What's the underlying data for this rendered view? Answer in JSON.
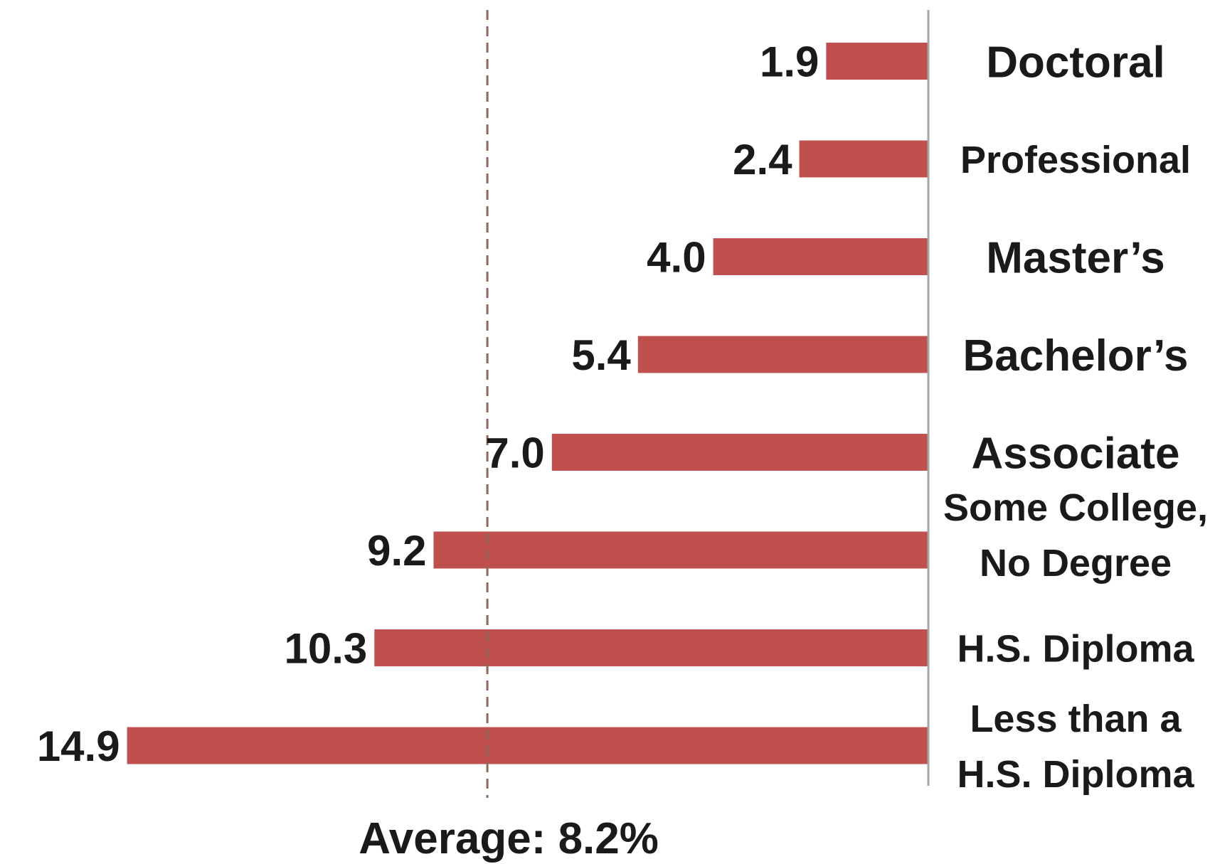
{
  "chart_data": {
    "type": "bar",
    "orientation": "horizontal",
    "categories": [
      "Doctoral",
      "Professional",
      "Master’s",
      "Bachelor’s",
      "Associate",
      "Some College, No Degree",
      "H.S. Diploma",
      "Less than a H.S. Diploma"
    ],
    "category_lines": [
      [
        "Doctoral"
      ],
      [
        "Professional"
      ],
      [
        "Master’s"
      ],
      [
        "Bachelor’s"
      ],
      [
        "Associate"
      ],
      [
        "Some College,",
        "No Degree"
      ],
      [
        "H.S. Diploma"
      ],
      [
        "Less than a",
        "H.S. Diploma"
      ]
    ],
    "values": [
      1.9,
      2.4,
      4.0,
      5.4,
      7.0,
      9.2,
      10.3,
      14.9
    ],
    "value_labels": [
      "1.9",
      "2.4",
      "4.0",
      "5.4",
      "7.0",
      "9.2",
      "10.3",
      "14.9"
    ],
    "reference_line": {
      "value": 8.2,
      "label": "Average: 8.2%"
    },
    "bar_color": "#c0504d",
    "avg_line_color": "#8b6a5a",
    "axis_color": "#a6a6a6",
    "grid": false,
    "legend": "none"
  }
}
